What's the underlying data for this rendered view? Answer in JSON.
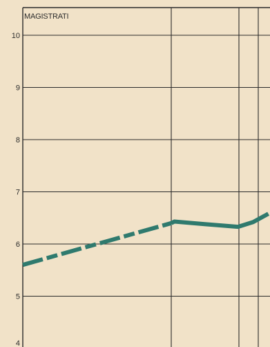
{
  "chart_data": {
    "type": "line",
    "title": "MAGISTRATI",
    "xlabel": "",
    "ylabel": "",
    "ylim": [
      4,
      10.4
    ],
    "yticks": [
      4,
      5,
      6,
      7,
      8,
      9,
      10
    ],
    "grid": true,
    "series": [
      {
        "segments": [
          {
            "style": "dashed",
            "points": [
              [
                0,
                5.6
              ],
              [
                0.98,
                6.4
              ]
            ]
          },
          {
            "style": "solid",
            "points": [
              [
                0.98,
                6.4
              ],
              [
                1.0,
                6.43
              ],
              [
                1.2,
                6.38
              ],
              [
                1.42,
                6.33
              ],
              [
                1.52,
                6.42
              ],
              [
                1.62,
                6.58
              ]
            ]
          }
        ]
      }
    ]
  },
  "colors": {
    "background": "#f1e2c8",
    "grid": "#2a2a2a",
    "line": "#2f7a6e"
  }
}
